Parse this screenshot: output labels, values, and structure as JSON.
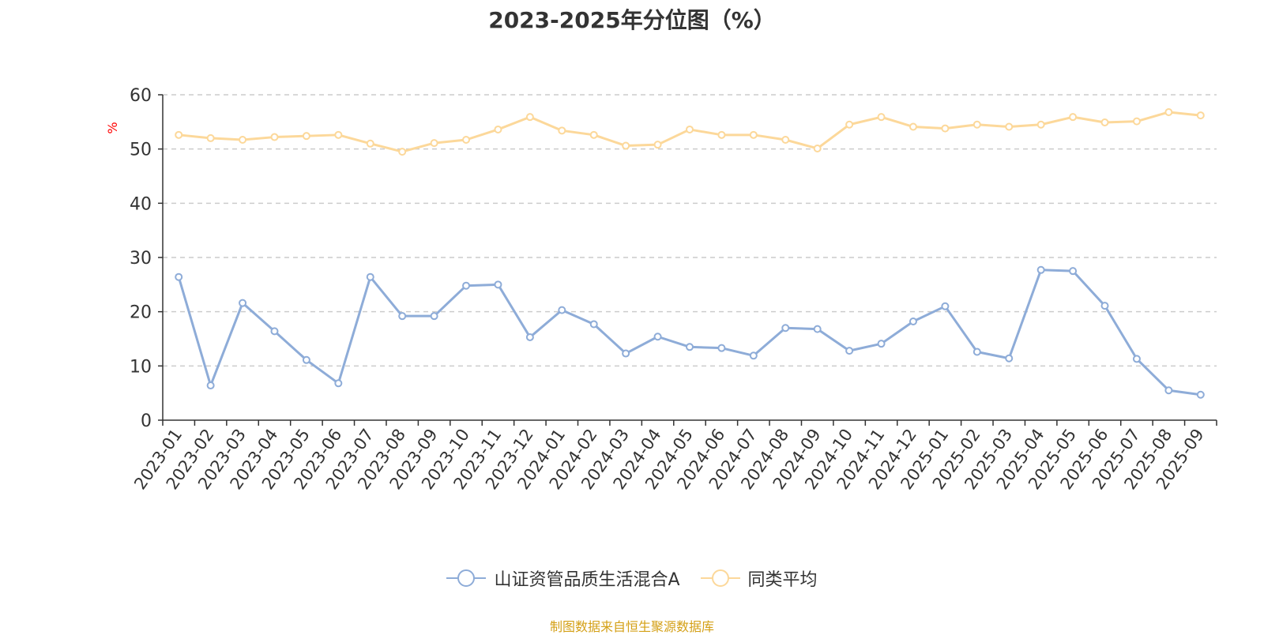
{
  "chart_data": {
    "type": "line",
    "title": "2023-2025年分位图（%）",
    "ylabel": "%",
    "xlabel": "",
    "ylim": [
      0,
      60
    ],
    "yticks": [
      0,
      10,
      20,
      30,
      40,
      50,
      60
    ],
    "grid": true,
    "legend_position": "bottom",
    "categories": [
      "2023-01",
      "2023-02",
      "2023-03",
      "2023-04",
      "2023-05",
      "2023-06",
      "2023-07",
      "2023-08",
      "2023-09",
      "2023-10",
      "2023-11",
      "2023-12",
      "2024-01",
      "2024-02",
      "2024-03",
      "2024-04",
      "2024-05",
      "2024-06",
      "2024-07",
      "2024-08",
      "2024-09",
      "2024-10",
      "2024-11",
      "2024-12",
      "2025-01",
      "2025-02",
      "2025-03",
      "2025-04",
      "2025-05",
      "2025-06",
      "2025-07",
      "2025-08",
      "2025-09"
    ],
    "series": [
      {
        "name": "山证资管品质生活混合A",
        "color": "#8eacd8",
        "values": [
          26.4,
          6.4,
          21.6,
          16.4,
          11.1,
          6.8,
          26.4,
          19.2,
          19.2,
          24.8,
          25.0,
          15.3,
          20.3,
          17.7,
          12.3,
          15.4,
          13.5,
          13.3,
          11.9,
          17.0,
          16.8,
          12.8,
          14.1,
          18.2,
          21.0,
          12.6,
          11.4,
          27.7,
          27.5,
          21.1,
          11.3,
          5.5,
          4.7
        ]
      },
      {
        "name": "同类平均",
        "color": "#fcd89a",
        "values": [
          52.6,
          52.0,
          51.7,
          52.2,
          52.4,
          52.6,
          51.0,
          49.5,
          51.1,
          51.7,
          53.6,
          55.9,
          53.4,
          52.6,
          50.6,
          50.8,
          53.6,
          52.6,
          52.6,
          51.7,
          50.1,
          54.5,
          55.9,
          54.1,
          53.8,
          54.5,
          54.1,
          54.5,
          55.9,
          54.9,
          55.1,
          56.8,
          56.2
        ]
      }
    ]
  },
  "source_note": "制图数据来自恒生聚源数据库"
}
